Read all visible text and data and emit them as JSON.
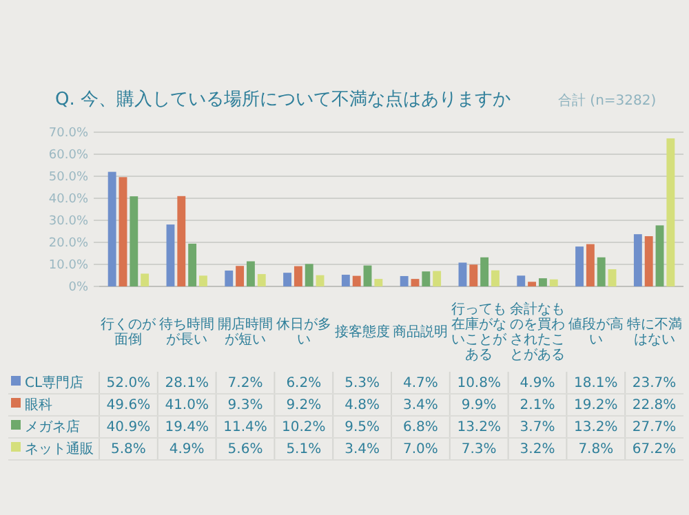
{
  "chart_data": {
    "type": "bar",
    "title": "Q. 今、購入している場所について不満な点はありますか",
    "subtitle": "合計 (n=3282)",
    "categories": [
      "行くのが面倒",
      "待ち時間が長い",
      "開店時間が短い",
      "休日が多い",
      "接客態度",
      "商品説明",
      "行っても在庫がないことがある",
      "余計なものを買わされたことがある",
      "値段が高い",
      "特に不満はない"
    ],
    "series": [
      {
        "name": "CL専門店",
        "color": "#6f8fcb",
        "values": [
          52.0,
          28.1,
          7.2,
          6.2,
          5.3,
          4.7,
          10.8,
          4.9,
          18.1,
          23.7
        ],
        "value_labels": [
          "52.0%",
          "28.1%",
          "7.2%",
          "6.2%",
          "5.3%",
          "4.7%",
          "10.8%",
          "4.9%",
          "18.1%",
          "23.7%"
        ]
      },
      {
        "name": "眼科",
        "color": "#d9734f",
        "values": [
          49.6,
          41.0,
          9.3,
          9.2,
          4.8,
          3.4,
          9.9,
          2.1,
          19.2,
          22.8
        ],
        "value_labels": [
          "49.6%",
          "41.0%",
          "9.3%",
          "9.2%",
          "4.8%",
          "3.4%",
          "9.9%",
          "2.1%",
          "19.2%",
          "22.8%"
        ]
      },
      {
        "name": "メガネ店",
        "color": "#6fa96c",
        "values": [
          40.9,
          19.4,
          11.4,
          10.2,
          9.5,
          6.8,
          13.2,
          3.7,
          13.2,
          27.7
        ],
        "value_labels": [
          "40.9%",
          "19.4%",
          "11.4%",
          "10.2%",
          "9.5%",
          "6.8%",
          "13.2%",
          "3.7%",
          "13.2%",
          "27.7%"
        ]
      },
      {
        "name": "ネット通販",
        "color": "#d5df7c",
        "values": [
          5.8,
          4.9,
          5.6,
          5.1,
          3.4,
          7.0,
          7.3,
          3.2,
          7.8,
          67.2
        ],
        "value_labels": [
          "5.8%",
          "4.9%",
          "5.6%",
          "5.1%",
          "3.4%",
          "7.0%",
          "7.3%",
          "3.2%",
          "7.8%",
          "67.2%"
        ]
      }
    ],
    "ylim": [
      0,
      70
    ],
    "yticks": [
      {
        "value": 0,
        "label": "0%"
      },
      {
        "value": 10,
        "label": "10.0%"
      },
      {
        "value": 20,
        "label": "20.0%"
      },
      {
        "value": 30,
        "label": "30.0%"
      },
      {
        "value": 40,
        "label": "40.0%"
      },
      {
        "value": 50,
        "label": "50.0%"
      },
      {
        "value": 60,
        "label": "60.0%"
      },
      {
        "value": 70,
        "label": "70.0%"
      }
    ],
    "grid": "y",
    "legend": "bottom"
  }
}
